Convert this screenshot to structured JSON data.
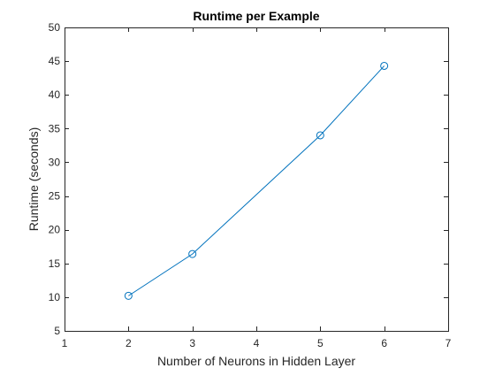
{
  "chart_data": {
    "type": "line",
    "title": "Runtime per Example",
    "xlabel": "Number of Neurons in Hidden Layer",
    "ylabel": "Runtime (seconds)",
    "xlim": [
      1,
      7
    ],
    "ylim": [
      5,
      50
    ],
    "x_ticks": [
      1,
      2,
      3,
      4,
      5,
      6,
      7
    ],
    "y_ticks": [
      5,
      10,
      15,
      20,
      25,
      30,
      35,
      40,
      45,
      50
    ],
    "grid": false,
    "series": [
      {
        "x": [
          2,
          3,
          5,
          6
        ],
        "values": [
          10.2,
          16.4,
          34.0,
          44.3
        ],
        "color": "#0072BD",
        "marker": "circle"
      }
    ]
  }
}
